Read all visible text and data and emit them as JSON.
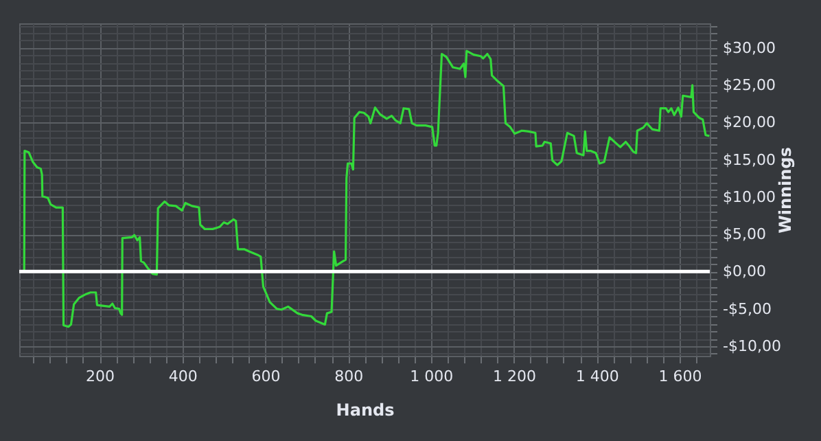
{
  "chart_data": {
    "type": "line",
    "xlabel": "Hands",
    "ylabel": "Winnings",
    "color": "#33d93a",
    "grid": true,
    "xlim": [
      6,
      1673
    ],
    "ylim": [
      -11.3,
      33.3
    ],
    "xticks": [
      {
        "value": 40,
        "label": null
      },
      {
        "value": 80,
        "label": null
      },
      {
        "value": 120,
        "label": null
      },
      {
        "value": 160,
        "label": null
      },
      200,
      {
        "value": 240,
        "label": null
      },
      {
        "value": 280,
        "label": null
      },
      {
        "value": 320,
        "label": null
      },
      {
        "value": 360,
        "label": null
      },
      400,
      {
        "value": 440,
        "label": null
      },
      {
        "value": 480,
        "label": null
      },
      {
        "value": 520,
        "label": null
      },
      {
        "value": 560,
        "label": null
      },
      600,
      {
        "value": 640,
        "label": null
      },
      {
        "value": 680,
        "label": null
      },
      {
        "value": 720,
        "label": null
      },
      {
        "value": 760,
        "label": null
      },
      800,
      {
        "value": 840,
        "label": null
      },
      {
        "value": 880,
        "label": null
      },
      {
        "value": 920,
        "label": null
      },
      {
        "value": 960,
        "label": null
      },
      {
        "value": 1000,
        "label": "1 000"
      },
      {
        "value": 1040,
        "label": null
      },
      {
        "value": 1080,
        "label": null
      },
      {
        "value": 1120,
        "label": null
      },
      {
        "value": 1160,
        "label": null
      },
      {
        "value": 1200,
        "label": "1 200"
      },
      {
        "value": 1240,
        "label": null
      },
      {
        "value": 1280,
        "label": null
      },
      {
        "value": 1320,
        "label": null
      },
      {
        "value": 1360,
        "label": null
      },
      {
        "value": 1400,
        "label": "1 400"
      },
      {
        "value": 1440,
        "label": null
      },
      {
        "value": 1480,
        "label": null
      },
      {
        "value": 1520,
        "label": null
      },
      {
        "value": 1560,
        "label": null
      },
      {
        "value": 1600,
        "label": "1 600"
      },
      {
        "value": 1640,
        "label": null
      }
    ],
    "yticks": [
      {
        "value": -11,
        "label": null
      },
      {
        "value": -10,
        "label": "-$10,00"
      },
      {
        "value": -9,
        "label": null
      },
      {
        "value": -8,
        "label": null
      },
      {
        "value": -7,
        "label": null
      },
      {
        "value": -6,
        "label": null
      },
      {
        "value": -5,
        "label": "-$5,00"
      },
      {
        "value": -4,
        "label": null
      },
      {
        "value": -3,
        "label": null
      },
      {
        "value": -2,
        "label": null
      },
      {
        "value": -1,
        "label": null
      },
      {
        "value": 0,
        "label": "$0,00"
      },
      {
        "value": 1,
        "label": null
      },
      {
        "value": 2,
        "label": null
      },
      {
        "value": 3,
        "label": null
      },
      {
        "value": 4,
        "label": null
      },
      {
        "value": 5,
        "label": "$5,00"
      },
      {
        "value": 6,
        "label": null
      },
      {
        "value": 7,
        "label": null
      },
      {
        "value": 8,
        "label": null
      },
      {
        "value": 9,
        "label": null
      },
      {
        "value": 10,
        "label": "$10,00"
      },
      {
        "value": 11,
        "label": null
      },
      {
        "value": 12,
        "label": null
      },
      {
        "value": 13,
        "label": null
      },
      {
        "value": 14,
        "label": null
      },
      {
        "value": 15,
        "label": "$15,00"
      },
      {
        "value": 16,
        "label": null
      },
      {
        "value": 17,
        "label": null
      },
      {
        "value": 18,
        "label": null
      },
      {
        "value": 19,
        "label": null
      },
      {
        "value": 20,
        "label": "$20,00"
      },
      {
        "value": 21,
        "label": null
      },
      {
        "value": 22,
        "label": null
      },
      {
        "value": 23,
        "label": null
      },
      {
        "value": 24,
        "label": null
      },
      {
        "value": 25,
        "label": "$25,00"
      },
      {
        "value": 26,
        "label": null
      },
      {
        "value": 27,
        "label": null
      },
      {
        "value": 28,
        "label": null
      },
      {
        "value": 29,
        "label": null
      },
      {
        "value": 30,
        "label": "$30,00"
      },
      {
        "value": 31,
        "label": null
      },
      {
        "value": 32,
        "label": null
      },
      {
        "value": 33,
        "label": null
      }
    ],
    "ref_lines": [
      {
        "axis": "y",
        "value": 0,
        "color": "#ffffff"
      }
    ],
    "x": [
      6,
      18,
      19,
      29,
      39,
      49,
      58,
      61,
      62,
      75,
      82,
      95,
      111,
      113,
      125,
      131,
      138,
      151,
      168,
      178,
      191,
      194,
      224,
      231,
      237,
      247,
      251,
      254,
      255,
      278,
      284,
      291,
      297,
      300,
      307,
      316,
      328,
      338,
      341,
      357,
      367,
      384,
      399,
      407,
      423,
      440,
      443,
      454,
      473,
      490,
      500,
      509,
      523,
      529,
      534,
      549,
      561,
      583,
      589,
      595,
      611,
      628,
      639,
      655,
      678,
      689,
      711,
      722,
      744,
      749,
      760,
      766,
      771,
      788,
      794,
      796,
      799,
      808,
      812,
      815,
      827,
      838,
      849,
      854,
      865,
      877,
      893,
      905,
      914,
      926,
      934,
      947,
      954,
      965,
      987,
      1003,
      1009,
      1013,
      1017,
      1026,
      1037,
      1053,
      1070,
      1079,
      1083,
      1086,
      1103,
      1120,
      1126,
      1136,
      1144,
      1147,
      1158,
      1175,
      1180,
      1191,
      1202,
      1219,
      1236,
      1252,
      1254,
      1269,
      1274,
      1289,
      1293,
      1305,
      1315,
      1329,
      1345,
      1352,
      1368,
      1372,
      1376,
      1385,
      1398,
      1407,
      1418,
      1431,
      1445,
      1457,
      1470,
      1479,
      1488,
      1495,
      1498,
      1512,
      1521,
      1534,
      1551,
      1554,
      1567,
      1573,
      1580,
      1587,
      1597,
      1604,
      1608,
      1628,
      1631,
      1634,
      1648,
      1656,
      1663,
      1672
    ],
    "values": [
      0,
      0,
      16.2,
      16.0,
      14.7,
      14.0,
      13.8,
      13.0,
      10.1,
      9.9,
      9.0,
      8.6,
      8.6,
      -7.2,
      -7.4,
      -7.1,
      -4.4,
      -3.5,
      -3.0,
      -2.8,
      -2.8,
      -4.5,
      -4.7,
      -4.3,
      -4.9,
      -5.0,
      -5.6,
      -5.8,
      4.5,
      4.6,
      4.9,
      4.2,
      4.6,
      1.4,
      1.2,
      0.5,
      -0.3,
      -0.4,
      8.5,
      9.4,
      8.9,
      8.8,
      8.2,
      9.2,
      8.8,
      8.6,
      6.3,
      5.7,
      5.7,
      6.0,
      6.6,
      6.4,
      7.0,
      6.8,
      3.0,
      3.0,
      2.7,
      2.2,
      2.0,
      -2.0,
      -4.1,
      -5.0,
      -5.1,
      -4.7,
      -5.6,
      -5.8,
      -6.0,
      -6.6,
      -7.1,
      -5.6,
      -5.4,
      2.7,
      0.8,
      1.4,
      1.6,
      12.5,
      14.5,
      14.5,
      13.7,
      20.6,
      21.4,
      21.3,
      20.8,
      19.9,
      22.0,
      21.1,
      20.5,
      20.9,
      20.3,
      19.9,
      21.9,
      21.8,
      19.9,
      19.6,
      19.6,
      19.4,
      16.9,
      16.9,
      18.6,
      29.2,
      28.8,
      27.4,
      27.2,
      27.9,
      26.1,
      29.6,
      29.1,
      28.9,
      28.6,
      29.2,
      28.5,
      26.3,
      25.7,
      24.9,
      19.9,
      19.4,
      18.5,
      18.9,
      18.8,
      18.6,
      16.8,
      16.9,
      17.4,
      17.2,
      14.9,
      14.3,
      14.8,
      18.6,
      18.2,
      15.9,
      15.6,
      18.8,
      16.2,
      16.2,
      15.9,
      14.5,
      14.7,
      18.0,
      17.3,
      16.7,
      17.4,
      16.8,
      16.1,
      15.9,
      18.9,
      19.3,
      19.9,
      19.1,
      18.9,
      21.9,
      21.9,
      21.4,
      21.9,
      21.0,
      22.0,
      20.8,
      23.6,
      23.4,
      25.0,
      21.4,
      20.6,
      20.4,
      18.3,
      18.2
    ]
  }
}
